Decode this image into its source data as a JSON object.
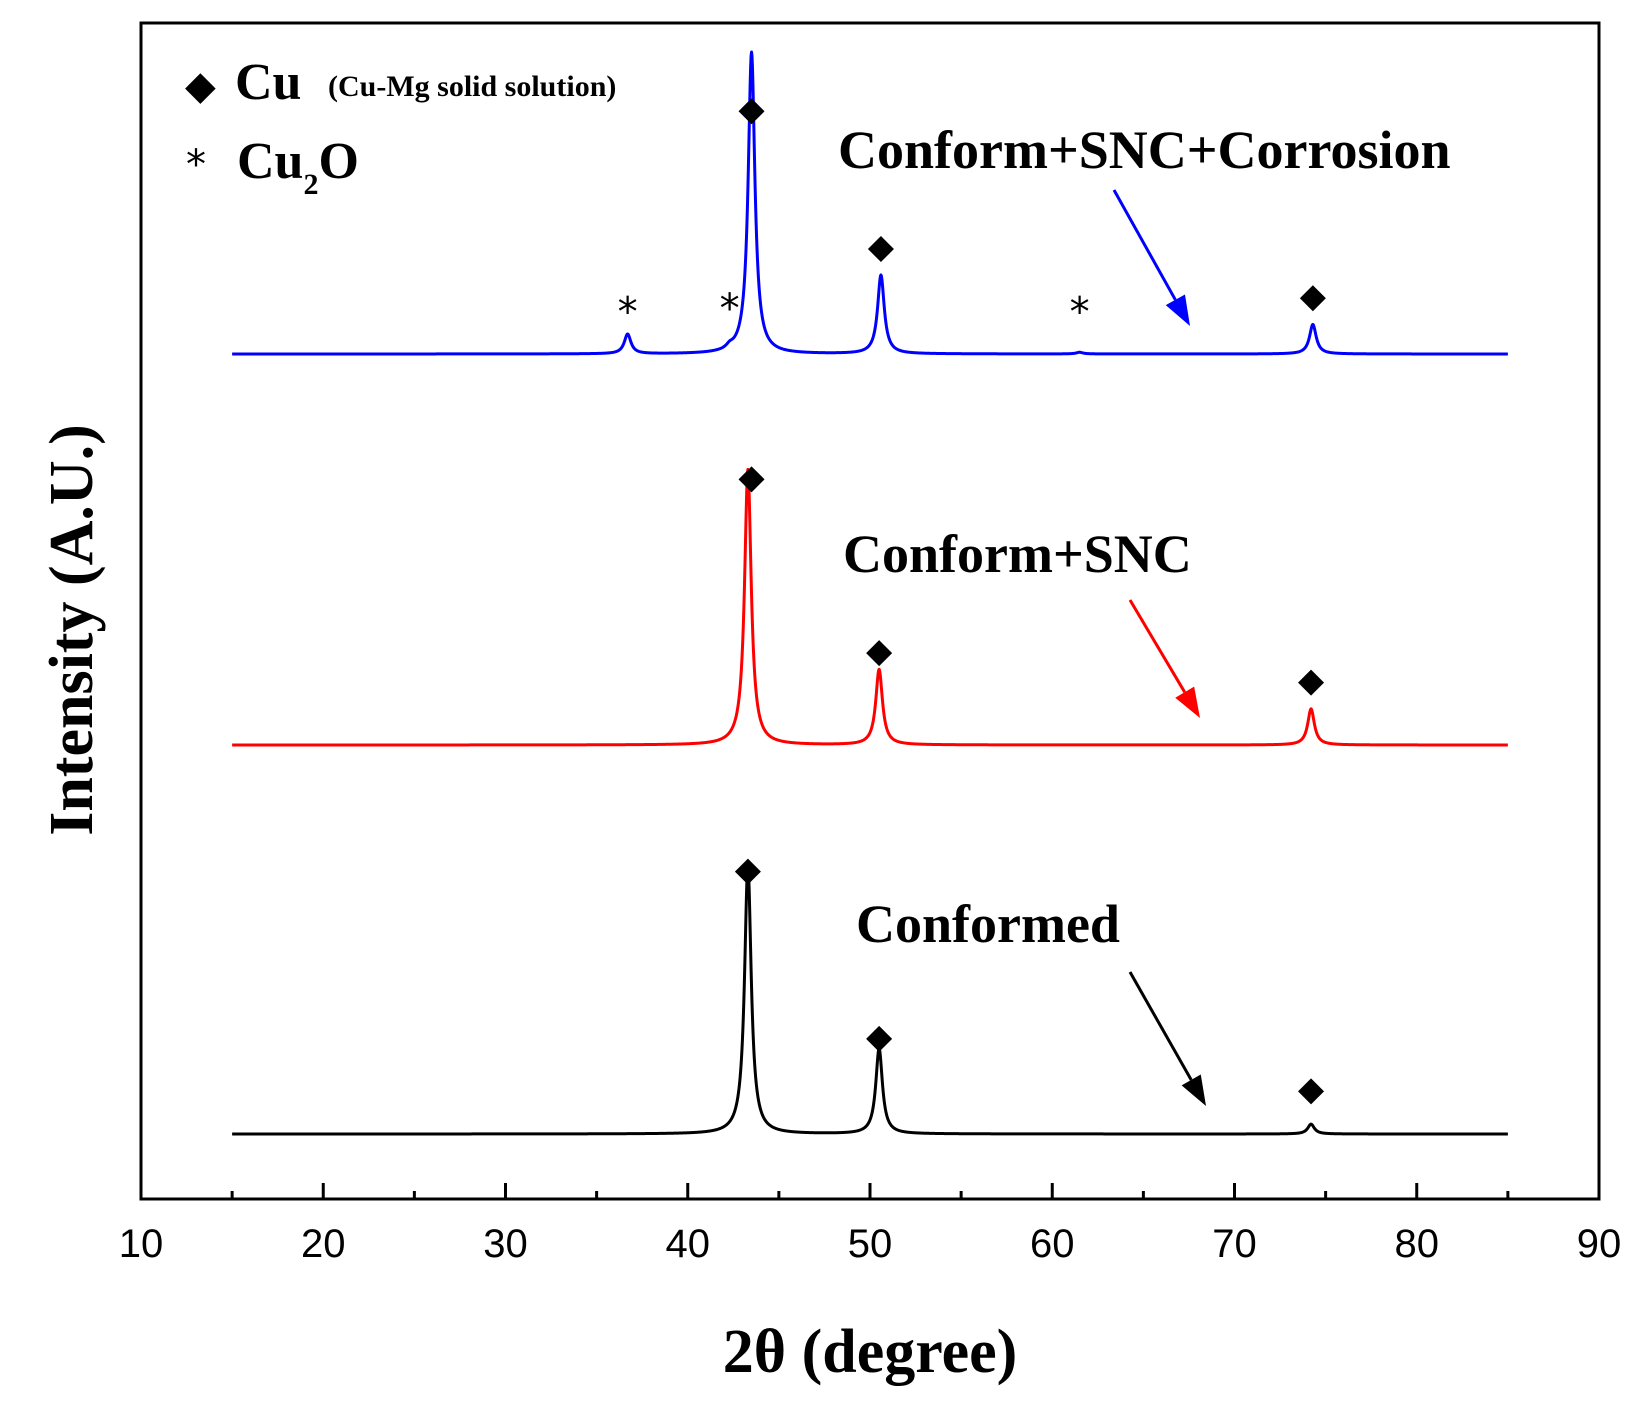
{
  "chart_data": {
    "type": "line",
    "title": "",
    "xlabel": "2θ (degree)",
    "ylabel": "Intensity (A.U.)",
    "xlim": [
      10,
      90
    ],
    "x_ticks": [
      10,
      20,
      30,
      40,
      50,
      60,
      70,
      80,
      90
    ],
    "x_minor_step": 5,
    "y_ticks": [],
    "grid": false,
    "legend": {
      "placement": "top-left",
      "entries": [
        {
          "symbol": "◆",
          "name": "Cu",
          "note": "(Cu-Mg solid solution)"
        },
        {
          "symbol": "*",
          "name": "Cu",
          "subscript": "2",
          "suffix": "O"
        }
      ]
    },
    "series": [
      {
        "name": "Conformed",
        "color": "#000000",
        "x_range": [
          15,
          85
        ],
        "baseline": 0.0,
        "peaks": [
          {
            "x": 43.3,
            "height": 0.82,
            "phase": "Cu"
          },
          {
            "x": 50.5,
            "height": 0.26,
            "phase": "Cu"
          },
          {
            "x": 74.2,
            "height": 0.03,
            "phase": "Cu"
          }
        ],
        "annotation": "Conformed"
      },
      {
        "name": "Conform+SNC",
        "color": "#ff0000",
        "x_range": [
          15,
          85
        ],
        "baseline": 1.0,
        "peaks": [
          {
            "x": 43.3,
            "height": 0.84,
            "phase": "Cu"
          },
          {
            "x": 50.5,
            "height": 0.23,
            "phase": "Cu"
          },
          {
            "x": 74.2,
            "height": 0.11,
            "phase": "Cu"
          }
        ],
        "annotation": "Conform+SNC"
      },
      {
        "name": "Conform+SNC+Corrosion",
        "color": "#0000ff",
        "x_range": [
          15,
          85
        ],
        "baseline": 2.0,
        "peaks": [
          {
            "x": 36.7,
            "height": 0.06,
            "phase": "Cu2O"
          },
          {
            "x": 42.3,
            "height": 0.01,
            "phase": "Cu2O"
          },
          {
            "x": 43.5,
            "height": 0.92,
            "phase": "Cu"
          },
          {
            "x": 50.6,
            "height": 0.24,
            "phase": "Cu"
          },
          {
            "x": 61.5,
            "height": 0.005,
            "phase": "Cu2O"
          },
          {
            "x": 74.3,
            "height": 0.09,
            "phase": "Cu"
          }
        ],
        "annotation": "Conform+SNC+Corrosion"
      }
    ],
    "phase_markers": [
      {
        "series": "Conform+SNC+Corrosion",
        "x": 43.5,
        "level": 2.74,
        "symbol": "◆"
      },
      {
        "series": "Conform+SNC+Corrosion",
        "x": 50.6,
        "level": 2.32,
        "symbol": "◆"
      },
      {
        "series": "Conform+SNC+Corrosion",
        "x": 74.3,
        "level": 2.17,
        "symbol": "◆"
      },
      {
        "series": "Conform+SNC+Corrosion",
        "x": 36.7,
        "level": 2.13,
        "symbol": "*"
      },
      {
        "series": "Conform+SNC+Corrosion",
        "x": 42.3,
        "level": 2.14,
        "symbol": "*"
      },
      {
        "series": "Conform+SNC+Corrosion",
        "x": 61.5,
        "level": 2.13,
        "symbol": "*"
      },
      {
        "series": "Conform+SNC",
        "x": 43.5,
        "level": 1.81,
        "symbol": "◆"
      },
      {
        "series": "Conform+SNC",
        "x": 50.5,
        "level": 1.28,
        "symbol": "◆"
      },
      {
        "series": "Conform+SNC",
        "x": 74.2,
        "level": 1.19,
        "symbol": "◆"
      },
      {
        "series": "Conformed",
        "x": 43.3,
        "level": 0.8,
        "symbol": "◆"
      },
      {
        "series": "Conformed",
        "x": 50.5,
        "level": 0.29,
        "symbol": "◆"
      },
      {
        "series": "Conformed",
        "x": 74.2,
        "level": 0.13,
        "symbol": "◆"
      }
    ]
  }
}
